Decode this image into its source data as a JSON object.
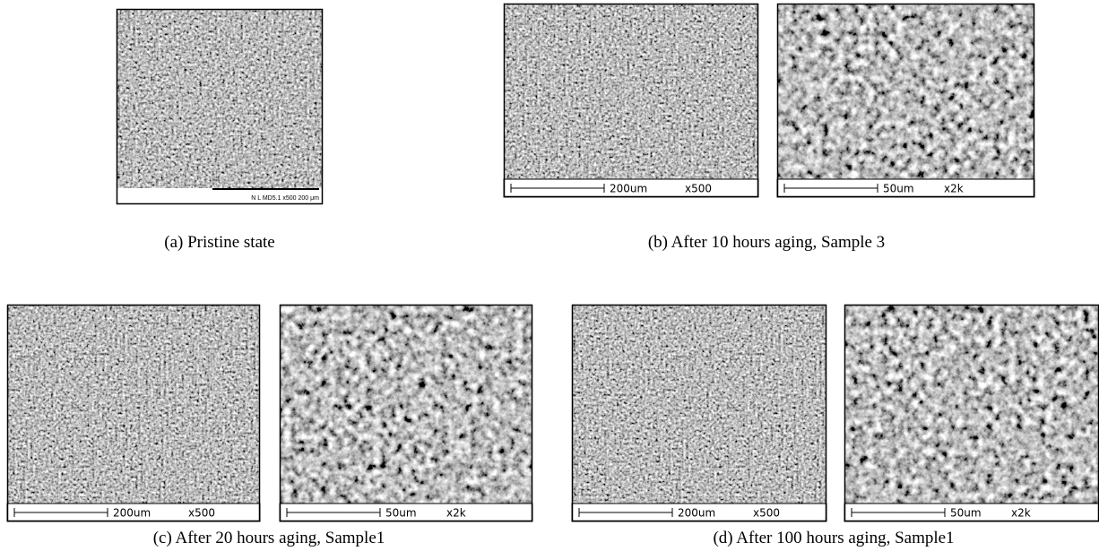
{
  "panels": [
    {
      "caption": "(a) Pristine state",
      "images": [
        {
          "label": "N L MD5.1   x500   200 μm"
        }
      ]
    },
    {
      "caption": "(b) After 10 hours aging, Sample 3",
      "images": [
        {
          "scale": "200um",
          "mag": "x500"
        },
        {
          "scale": "50um",
          "mag": "x2k"
        }
      ]
    },
    {
      "caption": "(c) After 20 hours aging, Sample1",
      "images": [
        {
          "scale": "200um",
          "mag": "x500"
        },
        {
          "scale": "50um",
          "mag": "x2k"
        }
      ]
    },
    {
      "caption": "(d) After 100 hours aging, Sample1",
      "images": [
        {
          "scale": "200um",
          "mag": "x500"
        },
        {
          "scale": "50um",
          "mag": "x2k"
        }
      ]
    }
  ]
}
